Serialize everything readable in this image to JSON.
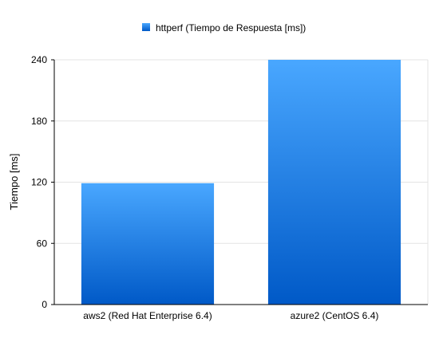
{
  "chart_data": {
    "type": "bar",
    "categories": [
      "aws2 (Red Hat Enterprise 6.4)",
      "azure2 (CentOS 6.4)"
    ],
    "series": [
      {
        "name": "httperf (Tiempo de Respuesta [ms])",
        "values": [
          119,
          240
        ],
        "color": "#1e7fe0"
      }
    ],
    "ylabel": "Tiempo [ms]",
    "xlabel": "",
    "ylim": [
      0,
      240
    ],
    "yticks": [
      0,
      60,
      120,
      180,
      240
    ],
    "grid": true,
    "legend_position": "top-center",
    "colors": {
      "bar_top": "#49a7ff",
      "bar_bottom": "#0059c7",
      "grid": "#e3e3e3",
      "axis": "#000000"
    }
  }
}
